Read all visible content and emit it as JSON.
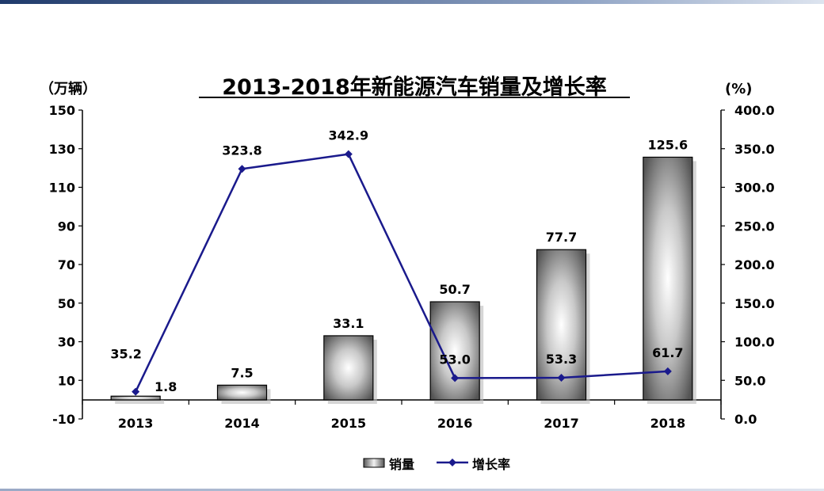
{
  "chart_data": {
    "type": "bar",
    "title": "2013-2018年新能源汽车销量及增长率",
    "categories": [
      "2013",
      "2014",
      "2015",
      "2016",
      "2017",
      "2018"
    ],
    "series": [
      {
        "name": "销量",
        "kind": "bar",
        "axis": "left",
        "values": [
          1.8,
          7.5,
          33.1,
          50.7,
          77.7,
          125.6
        ],
        "labels": [
          "1.8",
          "7.5",
          "33.1",
          "50.7",
          "77.7",
          "125.6"
        ],
        "color": "#808080"
      },
      {
        "name": "增长率",
        "kind": "line",
        "axis": "right",
        "values": [
          35.2,
          323.8,
          342.9,
          53.0,
          53.3,
          61.7
        ],
        "labels": [
          "35.2",
          "323.8",
          "342.9",
          "53.0",
          "53.3",
          "61.7"
        ],
        "color": "#1a1a8c"
      }
    ],
    "y_left": {
      "unit": "（万辆）",
      "ylim": [
        -10,
        150
      ],
      "ticks": [
        "150",
        "130",
        "110",
        "90",
        "70",
        "50",
        "30",
        "10",
        "-10"
      ]
    },
    "y_right": {
      "unit": "(%)",
      "ylim": [
        0,
        400
      ],
      "ticks": [
        "400.0",
        "350.0",
        "300.0",
        "250.0",
        "200.0",
        "150.0",
        "100.0",
        "50.0",
        "0.0"
      ]
    },
    "grid": false,
    "legend": "bottom-center"
  }
}
